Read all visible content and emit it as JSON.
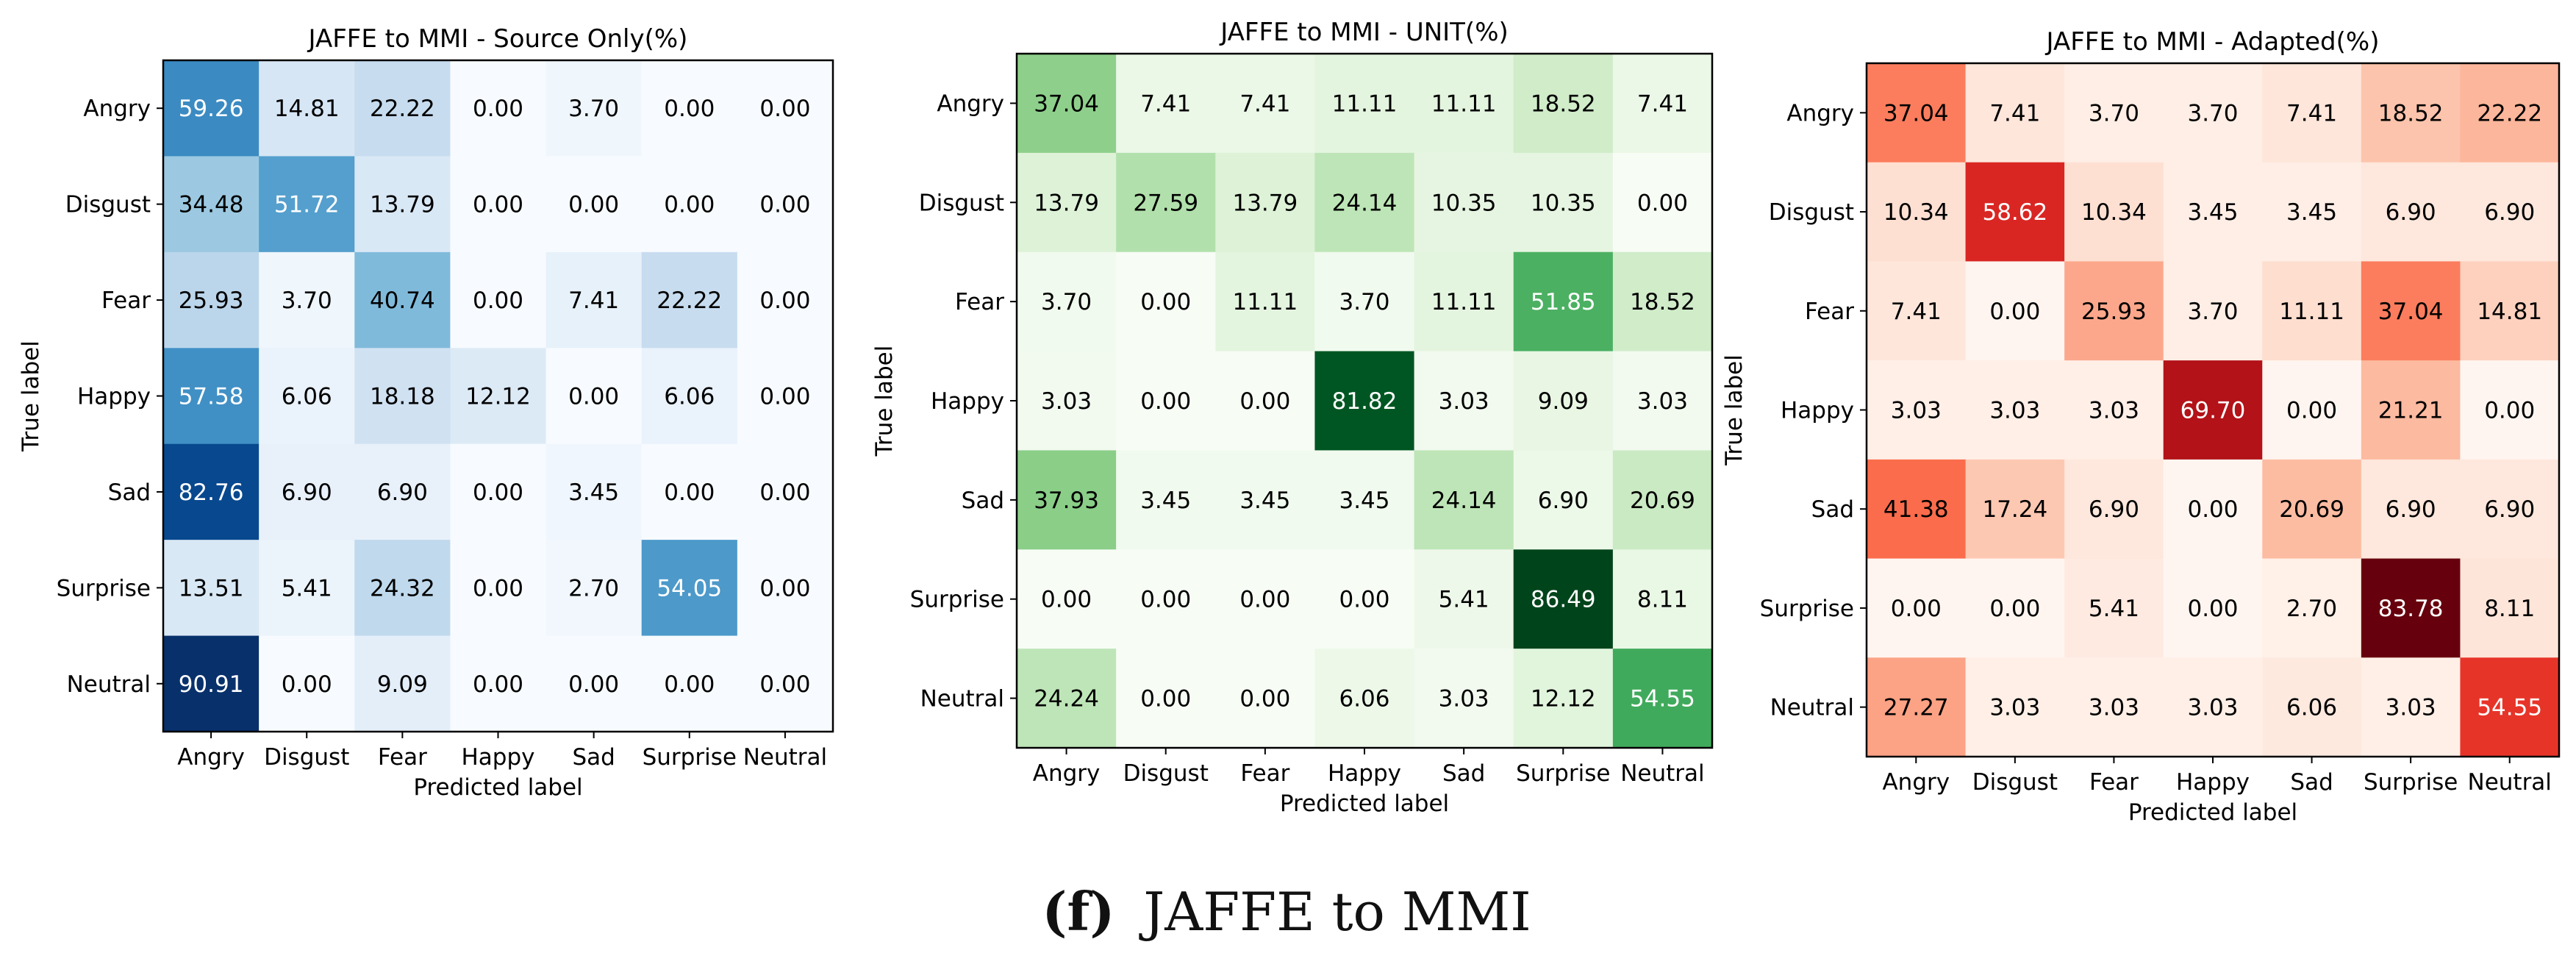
{
  "caption": {
    "label": "(f)",
    "text": "JAFFE to MMI"
  },
  "chart_data": [
    {
      "type": "heatmap",
      "title": "JAFFE to MMI - Source Only(%)",
      "xlabel": "Predicted label",
      "ylabel": "True label",
      "colormap": "Blues",
      "colors": [
        "#f7fbff",
        "#deebf7",
        "#c6dbef",
        "#9ecae1",
        "#6baed6",
        "#4292c6",
        "#2171b5",
        "#08519c",
        "#08306b"
      ],
      "vmax": 90.91,
      "categories": [
        "Angry",
        "Disgust",
        "Fear",
        "Happy",
        "Sad",
        "Surprise",
        "Neutral"
      ],
      "cells": [
        [
          "59.26",
          "14.81",
          "22.22",
          "0.00",
          "3.70",
          "0.00",
          "0.00"
        ],
        [
          "34.48",
          "51.72",
          "13.79",
          "0.00",
          "0.00",
          "0.00",
          "0.00"
        ],
        [
          "25.93",
          "3.70",
          "40.74",
          "0.00",
          "7.41",
          "22.22",
          "0.00"
        ],
        [
          "57.58",
          "6.06",
          "18.18",
          "12.12",
          "0.00",
          "6.06",
          "0.00"
        ],
        [
          "82.76",
          "6.90",
          "6.90",
          "0.00",
          "3.45",
          "0.00",
          "0.00"
        ],
        [
          "13.51",
          "5.41",
          "24.32",
          "0.00",
          "2.70",
          "54.05",
          "0.00"
        ],
        [
          "90.91",
          "0.00",
          "9.09",
          "0.00",
          "0.00",
          "0.00",
          "0.00"
        ]
      ]
    },
    {
      "type": "heatmap",
      "title": "JAFFE to MMI - UNIT(%)",
      "xlabel": "Predicted label",
      "ylabel": "True label",
      "colormap": "Greens",
      "colors": [
        "#f7fcf5",
        "#e5f5e0",
        "#c7e9c0",
        "#a1d99b",
        "#74c476",
        "#41ab5d",
        "#238b45",
        "#006d2c",
        "#00441b"
      ],
      "vmax": 86.49,
      "categories": [
        "Angry",
        "Disgust",
        "Fear",
        "Happy",
        "Sad",
        "Surprise",
        "Neutral"
      ],
      "cells": [
        [
          "37.04",
          "7.41",
          "7.41",
          "11.11",
          "11.11",
          "18.52",
          "7.41"
        ],
        [
          "13.79",
          "27.59",
          "13.79",
          "24.14",
          "10.35",
          "10.35",
          "0.00"
        ],
        [
          "3.70",
          "0.00",
          "11.11",
          "3.70",
          "11.11",
          "51.85",
          "18.52"
        ],
        [
          "3.03",
          "0.00",
          "0.00",
          "81.82",
          "3.03",
          "9.09",
          "3.03"
        ],
        [
          "37.93",
          "3.45",
          "3.45",
          "3.45",
          "24.14",
          "6.90",
          "20.69"
        ],
        [
          "0.00",
          "0.00",
          "0.00",
          "0.00",
          "5.41",
          "86.49",
          "8.11"
        ],
        [
          "24.24",
          "0.00",
          "0.00",
          "6.06",
          "3.03",
          "12.12",
          "54.55"
        ]
      ]
    },
    {
      "type": "heatmap",
      "title": "JAFFE to MMI - Adapted(%)",
      "xlabel": "Predicted label",
      "ylabel": "True label",
      "colormap": "Reds",
      "colors": [
        "#fff5f0",
        "#fee0d2",
        "#fcbba1",
        "#fc9272",
        "#fb6a4a",
        "#ef3b2c",
        "#cb181d",
        "#a50f15",
        "#67000d"
      ],
      "vmax": 83.78,
      "categories": [
        "Angry",
        "Disgust",
        "Fear",
        "Happy",
        "Sad",
        "Surprise",
        "Neutral"
      ],
      "cells": [
        [
          "37.04",
          "7.41",
          "3.70",
          "3.70",
          "7.41",
          "18.52",
          "22.22"
        ],
        [
          "10.34",
          "58.62",
          "10.34",
          "3.45",
          "3.45",
          "6.90",
          "6.90"
        ],
        [
          "7.41",
          "0.00",
          "25.93",
          "3.70",
          "11.11",
          "37.04",
          "14.81"
        ],
        [
          "3.03",
          "3.03",
          "3.03",
          "69.70",
          "0.00",
          "21.21",
          "0.00"
        ],
        [
          "41.38",
          "17.24",
          "6.90",
          "0.00",
          "20.69",
          "6.90",
          "6.90"
        ],
        [
          "0.00",
          "0.00",
          "5.41",
          "0.00",
          "2.70",
          "83.78",
          "8.11"
        ],
        [
          "27.27",
          "3.03",
          "3.03",
          "3.03",
          "6.06",
          "3.03",
          "54.55"
        ]
      ]
    }
  ]
}
